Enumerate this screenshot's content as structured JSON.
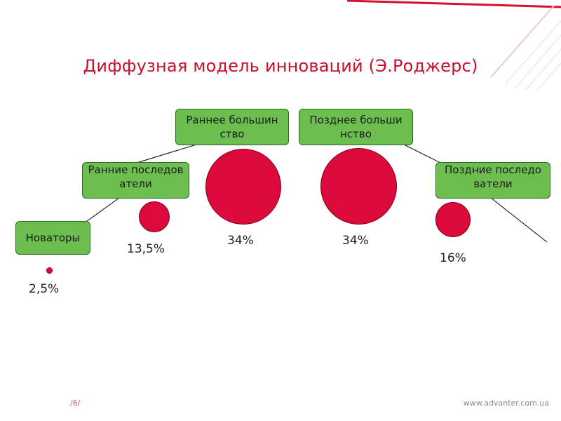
{
  "title": "Диффузная модель инноваций (Э.Роджерс)",
  "colors": {
    "accent": "#c8102e",
    "box_fill": "#6cbf4f",
    "circle_fill": "#dc0a3a"
  },
  "stages": [
    {
      "label": "Новаторы",
      "percent": "2,5%"
    },
    {
      "label": "Ранние последователи",
      "percent": "13,5%"
    },
    {
      "label": "Раннее большинство",
      "percent": "34%"
    },
    {
      "label": "Позднее большинство",
      "percent": "34%"
    },
    {
      "label": "Поздние последователи",
      "percent": "16%"
    }
  ],
  "footer": {
    "page": "/6/",
    "site": "www.advanter.com.ua"
  }
}
